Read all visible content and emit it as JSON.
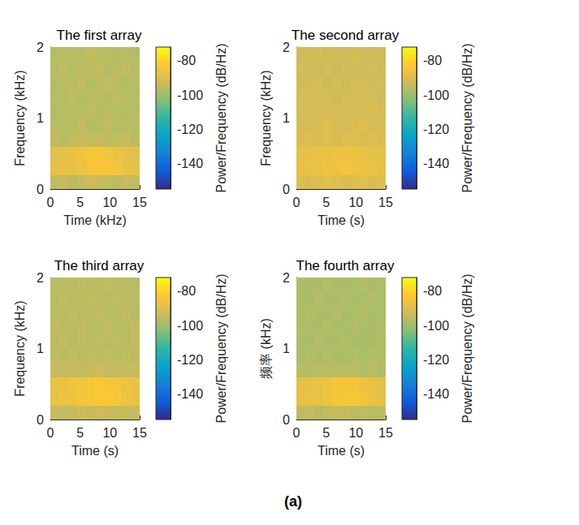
{
  "caption": "(a)",
  "chart_data": [
    {
      "type": "heatmap",
      "title": "The first array",
      "x_label": "Time (kHz)",
      "y_label": "Frequency (kHz)",
      "xlim": [
        0,
        15
      ],
      "xticks": [
        0,
        5,
        10,
        15
      ],
      "ylim": [
        0,
        2
      ],
      "yticks": [
        0,
        1,
        2
      ],
      "x_edges": [
        0,
        1.5,
        3,
        4.5,
        6,
        7.5,
        9,
        10.5,
        12,
        13.5,
        15
      ],
      "y_edges": [
        0,
        0.2,
        0.4,
        0.6,
        0.8,
        1,
        1.2,
        1.4,
        1.6,
        1.8,
        2
      ],
      "cells": [
        [
          -95,
          -94,
          -96,
          -95,
          -93,
          -94,
          -95,
          -96,
          -94,
          -95
        ],
        [
          -88,
          -87,
          -88,
          -86,
          -85,
          -84,
          -84,
          -85,
          -87,
          -88
        ],
        [
          -89,
          -88,
          -87,
          -86,
          -84,
          -84,
          -85,
          -86,
          -88,
          -89
        ],
        [
          -95,
          -96,
          -95,
          -94,
          -95,
          -94,
          -96,
          -95,
          -94,
          -96
        ],
        [
          -96,
          -97,
          -96,
          -95,
          -97,
          -96,
          -95,
          -97,
          -96,
          -97
        ],
        [
          -97,
          -96,
          -97,
          -96,
          -95,
          -97,
          -96,
          -96,
          -97,
          -96
        ],
        [
          -96,
          -97,
          -95,
          -97,
          -96,
          -96,
          -97,
          -95,
          -96,
          -97
        ],
        [
          -97,
          -96,
          -96,
          -95,
          -97,
          -96,
          -95,
          -96,
          -97,
          -96
        ],
        [
          -96,
          -95,
          -97,
          -96,
          -96,
          -95,
          -97,
          -96,
          -95,
          -96
        ],
        [
          -97,
          -96,
          -96,
          -97,
          -95,
          -96,
          -96,
          -97,
          -96,
          -97
        ]
      ],
      "colorbar": {
        "label": "Power/Frequency (dB/Hz)",
        "range": [
          -155,
          -72
        ],
        "ticks": [
          -140,
          -120,
          -100,
          -80
        ]
      }
    },
    {
      "type": "heatmap",
      "title": "The second array",
      "x_label": "Time (s)",
      "y_label": "Frequency (kHz)",
      "xlim": [
        0,
        15
      ],
      "xticks": [
        0,
        5,
        10,
        15
      ],
      "ylim": [
        0,
        2
      ],
      "yticks": [
        0,
        1,
        2
      ],
      "x_edges": [
        0,
        1.5,
        3,
        4.5,
        6,
        7.5,
        9,
        10.5,
        12,
        13.5,
        15
      ],
      "y_edges": [
        0,
        0.2,
        0.4,
        0.6,
        0.8,
        1,
        1.2,
        1.4,
        1.6,
        1.8,
        2
      ],
      "cells": [
        [
          -90,
          -91,
          -90,
          -89,
          -90,
          -91,
          -90,
          -89,
          -91,
          -90
        ],
        [
          -88,
          -87,
          -87,
          -86,
          -86,
          -85,
          -86,
          -87,
          -87,
          -88
        ],
        [
          -88,
          -88,
          -87,
          -87,
          -86,
          -86,
          -86,
          -87,
          -88,
          -88
        ],
        [
          -91,
          -90,
          -91,
          -90,
          -91,
          -90,
          -90,
          -91,
          -90,
          -91
        ],
        [
          -91,
          -92,
          -91,
          -90,
          -91,
          -92,
          -91,
          -90,
          -92,
          -91
        ],
        [
          -92,
          -91,
          -92,
          -91,
          -92,
          -91,
          -92,
          -92,
          -91,
          -92
        ],
        [
          -92,
          -92,
          -91,
          -92,
          -93,
          -92,
          -91,
          -92,
          -92,
          -93
        ],
        [
          -93,
          -92,
          -92,
          -93,
          -92,
          -93,
          -92,
          -92,
          -93,
          -92
        ],
        [
          -92,
          -93,
          -93,
          -92,
          -93,
          -92,
          -93,
          -93,
          -92,
          -93
        ],
        [
          -93,
          -93,
          -92,
          -93,
          -93,
          -93,
          -92,
          -93,
          -93,
          -93
        ]
      ],
      "colorbar": {
        "label": "Power/Frequency (dB/Hz)",
        "range": [
          -155,
          -72
        ],
        "ticks": [
          -140,
          -120,
          -100,
          -80
        ]
      }
    },
    {
      "type": "heatmap",
      "title": "The third array",
      "x_label": "Time (s)",
      "y_label": "Frequency (kHz)",
      "xlim": [
        0,
        15
      ],
      "xticks": [
        0,
        5,
        10,
        15
      ],
      "ylim": [
        0,
        2
      ],
      "yticks": [
        0,
        1,
        2
      ],
      "x_edges": [
        0,
        1.5,
        3,
        4.5,
        6,
        7.5,
        9,
        10.5,
        12,
        13.5,
        15
      ],
      "y_edges": [
        0,
        0.2,
        0.4,
        0.6,
        0.8,
        1,
        1.2,
        1.4,
        1.6,
        1.8,
        2
      ],
      "cells": [
        [
          -94,
          -95,
          -94,
          -93,
          -94,
          -93,
          -94,
          -95,
          -94,
          -94
        ],
        [
          -87,
          -86,
          -86,
          -85,
          -84,
          -83,
          -83,
          -84,
          -86,
          -87
        ],
        [
          -87,
          -87,
          -86,
          -85,
          -84,
          -83,
          -84,
          -85,
          -86,
          -87
        ],
        [
          -94,
          -95,
          -94,
          -95,
          -94,
          -93,
          -95,
          -94,
          -95,
          -94
        ],
        [
          -95,
          -96,
          -95,
          -96,
          -95,
          -96,
          -95,
          -96,
          -95,
          -96
        ],
        [
          -96,
          -95,
          -96,
          -95,
          -96,
          -95,
          -96,
          -95,
          -96,
          -95
        ],
        [
          -95,
          -96,
          -96,
          -95,
          -96,
          -96,
          -95,
          -96,
          -96,
          -95
        ],
        [
          -96,
          -96,
          -95,
          -96,
          -96,
          -95,
          -96,
          -96,
          -95,
          -96
        ],
        [
          -96,
          -95,
          -96,
          -96,
          -95,
          -96,
          -96,
          -95,
          -96,
          -96
        ],
        [
          -96,
          -96,
          -96,
          -95,
          -96,
          -96,
          -95,
          -96,
          -96,
          -96
        ]
      ],
      "colorbar": {
        "label": "Power/Frequency (dB/Hz)",
        "range": [
          -155,
          -72
        ],
        "ticks": [
          -140,
          -120,
          -100,
          -80
        ]
      }
    },
    {
      "type": "heatmap",
      "title": "The fourth array",
      "x_label": "Time (s)",
      "y_label": "频率 (kHz)",
      "xlim": [
        0,
        15
      ],
      "xticks": [
        0,
        5,
        10,
        15
      ],
      "ylim": [
        0,
        2
      ],
      "yticks": [
        0,
        1,
        2
      ],
      "x_edges": [
        0,
        1.5,
        3,
        4.5,
        6,
        7.5,
        9,
        10.5,
        12,
        13.5,
        15
      ],
      "y_edges": [
        0,
        0.2,
        0.4,
        0.6,
        0.8,
        1,
        1.2,
        1.4,
        1.6,
        1.8,
        2
      ],
      "cells": [
        [
          -96,
          -95,
          -96,
          -95,
          -94,
          -95,
          -96,
          -95,
          -96,
          -96
        ],
        [
          -88,
          -87,
          -87,
          -86,
          -85,
          -84,
          -84,
          -85,
          -87,
          -88
        ],
        [
          -88,
          -88,
          -87,
          -86,
          -85,
          -84,
          -85,
          -86,
          -87,
          -89
        ],
        [
          -96,
          -97,
          -96,
          -96,
          -97,
          -96,
          -96,
          -97,
          -96,
          -97
        ],
        [
          -98,
          -97,
          -98,
          -97,
          -98,
          -98,
          -97,
          -98,
          -97,
          -98
        ],
        [
          -98,
          -98,
          -97,
          -98,
          -98,
          -97,
          -98,
          -98,
          -98,
          -97
        ],
        [
          -97,
          -98,
          -98,
          -97,
          -98,
          -98,
          -97,
          -98,
          -98,
          -98
        ],
        [
          -98,
          -97,
          -98,
          -98,
          -97,
          -98,
          -98,
          -97,
          -98,
          -98
        ],
        [
          -98,
          -98,
          -97,
          -98,
          -98,
          -97,
          -98,
          -98,
          -97,
          -98
        ],
        [
          -98,
          -98,
          -98,
          -97,
          -98,
          -98,
          -98,
          -97,
          -98,
          -98
        ]
      ],
      "colorbar": {
        "label": "Power/Frequency (dB/Hz)",
        "range": [
          -155,
          -72
        ],
        "ticks": [
          -140,
          -120,
          -100,
          -80
        ]
      }
    }
  ]
}
